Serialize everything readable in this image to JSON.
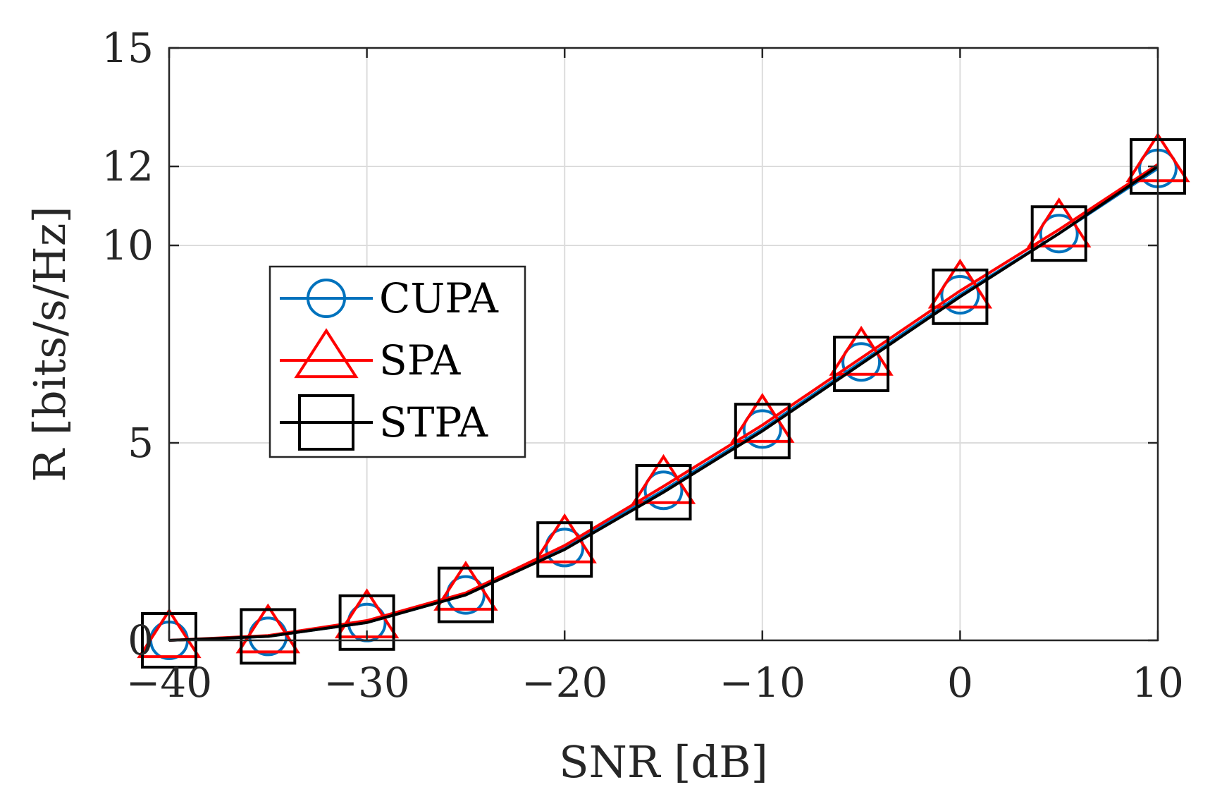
{
  "chart_data": {
    "type": "line",
    "title": "",
    "xlabel": "SNR [dB]",
    "ylabel": "R [bits/s/Hz]",
    "xlim": [
      -40,
      10
    ],
    "ylim": [
      0,
      15
    ],
    "xticks": [
      -40,
      -30,
      -20,
      -10,
      0,
      10
    ],
    "xtick_labels": [
      "−40",
      "−30",
      "−20",
      "−10",
      "0",
      "10"
    ],
    "yticks": [
      0,
      5,
      10,
      12,
      15
    ],
    "ytick_labels": [
      "0",
      "5",
      "10",
      "12",
      "15"
    ],
    "grid": true,
    "legend_position": "center-left",
    "x": [
      -40,
      -35,
      -30,
      -25,
      -20,
      -15,
      -10,
      -5,
      0,
      5,
      10
    ],
    "series": [
      {
        "name": "CUPA",
        "color": "#0072BD",
        "marker": "circle",
        "values": [
          0.0,
          0.1,
          0.45,
          1.15,
          2.35,
          3.8,
          5.35,
          7.05,
          8.75,
          10.3,
          11.95
        ]
      },
      {
        "name": "SPA",
        "color": "#FF0000",
        "marker": "triangle",
        "values": [
          0.0,
          0.12,
          0.5,
          1.2,
          2.4,
          3.9,
          5.45,
          7.15,
          8.85,
          10.4,
          12.05
        ]
      },
      {
        "name": "STPA",
        "color": "#000000",
        "marker": "square",
        "values": [
          0.0,
          0.1,
          0.45,
          1.15,
          2.3,
          3.75,
          5.3,
          7.0,
          8.7,
          10.3,
          12.0
        ]
      }
    ]
  }
}
